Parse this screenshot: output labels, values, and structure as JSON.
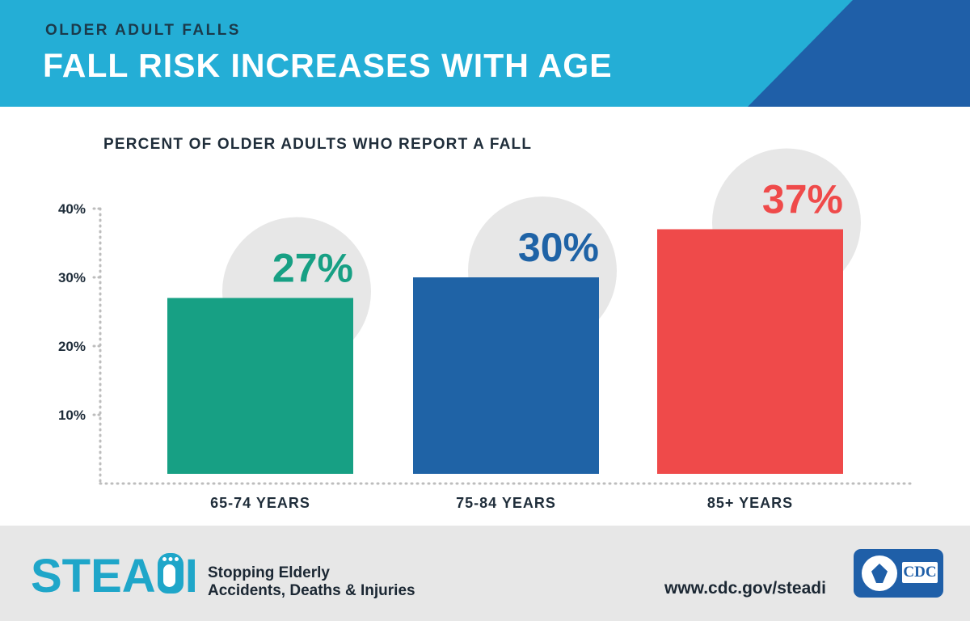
{
  "header": {
    "kicker": "OLDER ADULT FALLS",
    "headline": "FALL RISK INCREASES WITH AGE",
    "background_color": "#24aed6",
    "accent_color": "#1f5fa8"
  },
  "chart_data": {
    "type": "bar",
    "title": "PERCENT OF OLDER ADULTS WHO REPORT A FALL",
    "categories": [
      "65-74 YEARS",
      "75-84 YEARS",
      "85+ YEARS"
    ],
    "values": [
      27,
      30,
      37
    ],
    "data_labels": [
      "27%",
      "30%",
      "37%"
    ],
    "colors": [
      "#17a084",
      "#1f63a6",
      "#ef4a4a"
    ],
    "yticks": [
      10,
      20,
      30,
      40
    ],
    "ytick_labels": [
      "10%",
      "20%",
      "30%",
      "40%"
    ],
    "ylim": [
      0,
      40
    ],
    "xlabel": "",
    "ylabel": "",
    "grid": false,
    "legend": "none"
  },
  "footer": {
    "logo_text_left": "STEA",
    "logo_text_right": "I",
    "tagline_line1": "Stopping Elderly",
    "tagline_line2": "Accidents, Deaths & Injuries",
    "url": "www.cdc.gov/steadi",
    "badge_text": "CDC",
    "logo_color": "#1fa6c9"
  }
}
